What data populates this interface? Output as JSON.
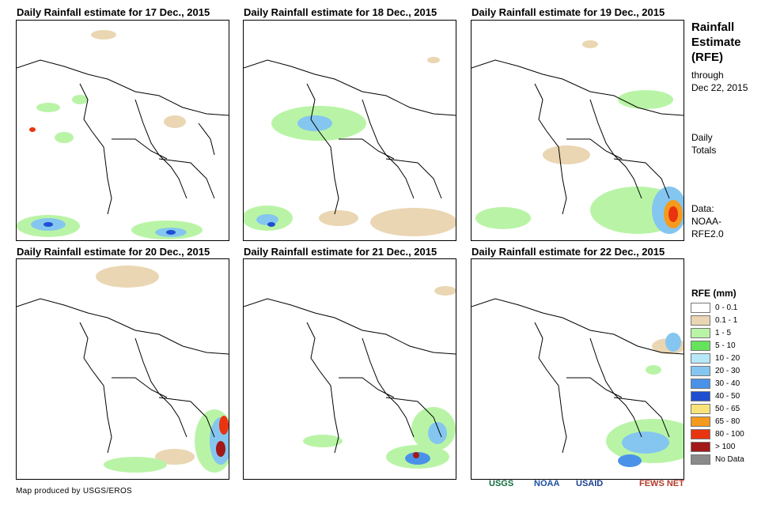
{
  "panels": [
    {
      "title": "Daily Rainfall estimate for 17 Dec., 2015"
    },
    {
      "title": "Daily Rainfall estimate for 18 Dec., 2015"
    },
    {
      "title": "Daily Rainfall estimate for 19 Dec., 2015"
    },
    {
      "title": "Daily Rainfall estimate for 20 Dec., 2015"
    },
    {
      "title": "Daily Rainfall estimate for 21 Dec., 2015"
    },
    {
      "title": "Daily Rainfall estimate for 22 Dec., 2015"
    }
  ],
  "sidebar": {
    "heading_line1": "Rainfall",
    "heading_line2": "Estimate",
    "heading_line3": "(RFE)",
    "through": "through",
    "date": "Dec 22, 2015",
    "daily1": "Daily",
    "daily2": "Totals",
    "data1": "Data:",
    "data2": "NOAA-",
    "data3": "RFE2.0"
  },
  "legend": {
    "title": "RFE (mm)",
    "items": [
      {
        "label": "0 - 0.1",
        "color": "#ffffff"
      },
      {
        "label": "0.1 - 1",
        "color": "#ead6b3"
      },
      {
        "label": "1 - 5",
        "color": "#b9f4a6"
      },
      {
        "label": "5 - 10",
        "color": "#66e35c"
      },
      {
        "label": "10 - 20",
        "color": "#b6e8f7"
      },
      {
        "label": "20 - 30",
        "color": "#84c6f0"
      },
      {
        "label": "30 - 40",
        "color": "#4a92e8"
      },
      {
        "label": "40 - 50",
        "color": "#1f4fd0"
      },
      {
        "label": "50 - 65",
        "color": "#f7e37a"
      },
      {
        "label": "65 - 80",
        "color": "#f59a1c"
      },
      {
        "label": "80 - 100",
        "color": "#e8340f"
      },
      {
        "label": "> 100",
        "color": "#a31818"
      },
      {
        "label": "No Data",
        "color": "#8a8a8a"
      }
    ]
  },
  "footer": {
    "credit": "Map produced by USGS/EROS",
    "logos": [
      "USGS",
      "NOAA",
      "USAID",
      "FEWS NET"
    ]
  }
}
